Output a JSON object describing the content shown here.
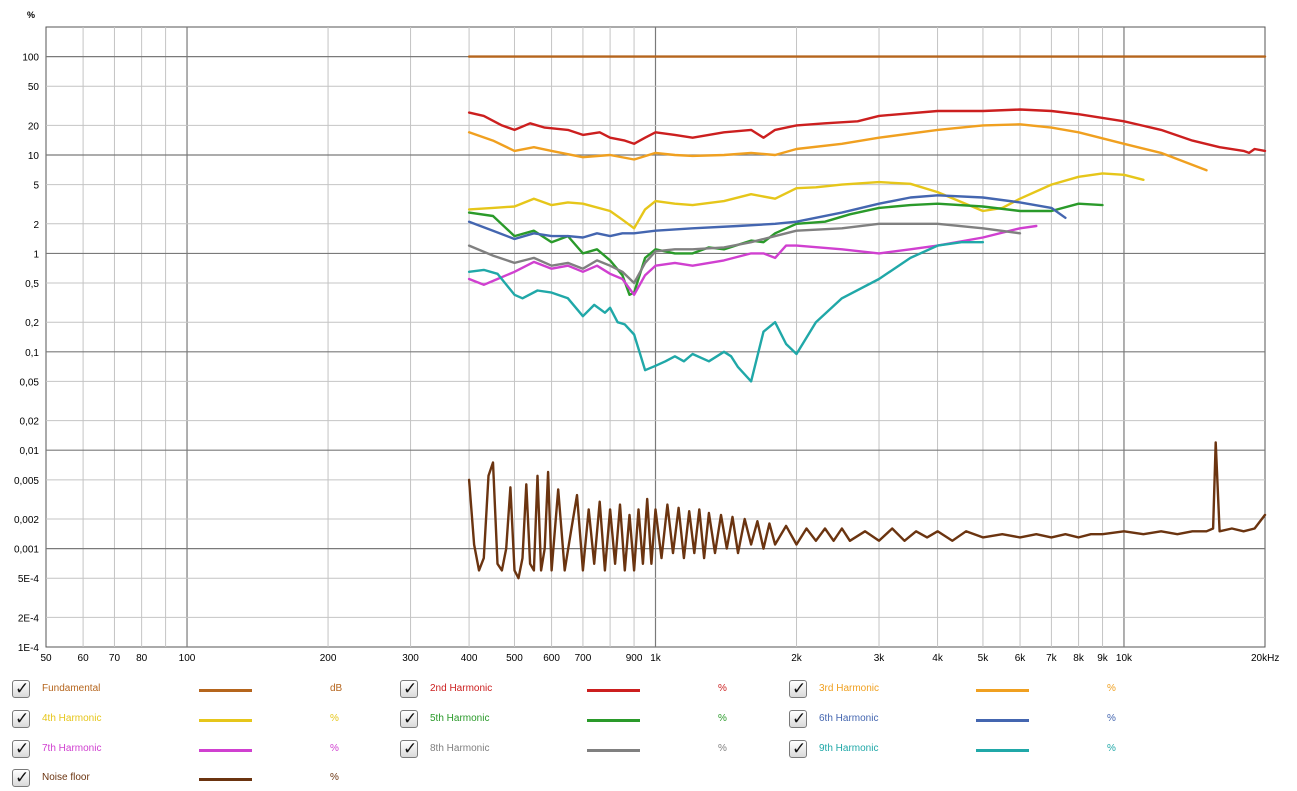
{
  "chart_data": {
    "type": "line",
    "y_unit_label": "%",
    "x_unit_label": "Hz",
    "x_scale": "log",
    "y_scale": "log",
    "xlim": [
      50,
      20000
    ],
    "ylim": [
      0.0001,
      200
    ],
    "grid": true,
    "x_tick_labels": [
      {
        "v": 50,
        "t": "50"
      },
      {
        "v": 60,
        "t": "60"
      },
      {
        "v": 70,
        "t": "70"
      },
      {
        "v": 80,
        "t": "80"
      },
      {
        "v": 100,
        "t": "100"
      },
      {
        "v": 200,
        "t": "200"
      },
      {
        "v": 300,
        "t": "300"
      },
      {
        "v": 400,
        "t": "400"
      },
      {
        "v": 500,
        "t": "500"
      },
      {
        "v": 600,
        "t": "600"
      },
      {
        "v": 700,
        "t": "700"
      },
      {
        "v": 900,
        "t": "900"
      },
      {
        "v": 1000,
        "t": "1k"
      },
      {
        "v": 2000,
        "t": "2k"
      },
      {
        "v": 3000,
        "t": "3k"
      },
      {
        "v": 4000,
        "t": "4k"
      },
      {
        "v": 5000,
        "t": "5k"
      },
      {
        "v": 6000,
        "t": "6k"
      },
      {
        "v": 7000,
        "t": "7k"
      },
      {
        "v": 8000,
        "t": "8k"
      },
      {
        "v": 9000,
        "t": "9k"
      },
      {
        "v": 10000,
        "t": "10k"
      },
      {
        "v": 20000,
        "t": "20kHz"
      }
    ],
    "y_tick_labels": [
      {
        "v": 100,
        "t": "100"
      },
      {
        "v": 50,
        "t": "50"
      },
      {
        "v": 20,
        "t": "20"
      },
      {
        "v": 10,
        "t": "10"
      },
      {
        "v": 5,
        "t": "5"
      },
      {
        "v": 2,
        "t": "2"
      },
      {
        "v": 1,
        "t": "1"
      },
      {
        "v": 0.5,
        "t": "0,5"
      },
      {
        "v": 0.2,
        "t": "0,2"
      },
      {
        "v": 0.1,
        "t": "0,1"
      },
      {
        "v": 0.05,
        "t": "0,05"
      },
      {
        "v": 0.02,
        "t": "0,02"
      },
      {
        "v": 0.01,
        "t": "0,01"
      },
      {
        "v": 0.005,
        "t": "0,005"
      },
      {
        "v": 0.002,
        "t": "0,002"
      },
      {
        "v": 0.001,
        "t": "0,001"
      },
      {
        "v": 0.0005,
        "t": "5E-4"
      },
      {
        "v": 0.0002,
        "t": "2E-4"
      },
      {
        "v": 0.0001,
        "t": "1E-4"
      }
    ],
    "series": [
      {
        "name": "Fundamental",
        "unit": "dB",
        "color": "#b5651d",
        "x": [
          400,
          20000
        ],
        "y": [
          100,
          100
        ]
      },
      {
        "name": "2nd Harmonic",
        "unit": "%",
        "color": "#cc1f1f",
        "x": [
          400,
          430,
          470,
          500,
          540,
          580,
          650,
          700,
          760,
          800,
          860,
          900,
          950,
          1000,
          1100,
          1200,
          1400,
          1600,
          1700,
          1800,
          2000,
          2300,
          2700,
          3000,
          4000,
          5000,
          6000,
          7000,
          8000,
          10000,
          12000,
          14000,
          16000,
          18000,
          18500,
          19000,
          20000
        ],
        "y": [
          27,
          25,
          20,
          18,
          21,
          19,
          18,
          16,
          17,
          15,
          14,
          13,
          15,
          17,
          16,
          15,
          17,
          18,
          15,
          18,
          20,
          21,
          22,
          25,
          28,
          28,
          29,
          28,
          26,
          22,
          18,
          14,
          12,
          11,
          10.5,
          11.5,
          11
        ]
      },
      {
        "name": "3rd Harmonic",
        "unit": "%",
        "color": "#f0a020",
        "x": [
          400,
          450,
          500,
          550,
          600,
          700,
          800,
          900,
          1000,
          1100,
          1200,
          1400,
          1600,
          1800,
          2000,
          2500,
          3000,
          4000,
          5000,
          6000,
          7000,
          8000,
          10000,
          12000,
          15000
        ],
        "y": [
          17,
          14,
          11,
          12,
          11,
          9.5,
          10,
          9,
          10.5,
          10,
          9.8,
          10,
          10.5,
          10,
          11.5,
          13,
          15,
          18,
          20,
          20.5,
          19,
          17,
          13,
          10.5,
          7
        ]
      },
      {
        "name": "4th Harmonic",
        "unit": "%",
        "color": "#e6c61a",
        "x": [
          400,
          450,
          500,
          550,
          600,
          650,
          700,
          800,
          850,
          900,
          950,
          1000,
          1100,
          1200,
          1400,
          1600,
          1800,
          2000,
          2200,
          2500,
          3000,
          3500,
          4000,
          5000,
          5500,
          6000,
          7000,
          8000,
          9000,
          10000,
          11000
        ],
        "y": [
          2.8,
          2.9,
          3.0,
          3.6,
          3.1,
          3.3,
          3.2,
          2.7,
          2.2,
          1.8,
          2.8,
          3.4,
          3.2,
          3.1,
          3.4,
          4.0,
          3.6,
          4.6,
          4.7,
          5.0,
          5.3,
          5.1,
          4.2,
          2.7,
          2.9,
          3.6,
          5.0,
          6.0,
          6.5,
          6.3,
          5.6
        ]
      },
      {
        "name": "5th Harmonic",
        "unit": "%",
        "color": "#2a9a2a",
        "x": [
          400,
          450,
          500,
          550,
          600,
          650,
          700,
          750,
          800,
          850,
          880,
          900,
          950,
          1000,
          1100,
          1200,
          1300,
          1400,
          1600,
          1700,
          1800,
          2000,
          2300,
          2600,
          3000,
          3500,
          4000,
          5000,
          6000,
          7000,
          8000,
          9000
        ],
        "y": [
          2.6,
          2.4,
          1.5,
          1.7,
          1.3,
          1.5,
          1.0,
          1.1,
          0.85,
          0.6,
          0.38,
          0.4,
          0.9,
          1.1,
          1.0,
          1.0,
          1.15,
          1.1,
          1.35,
          1.3,
          1.6,
          2.0,
          2.1,
          2.5,
          2.9,
          3.1,
          3.2,
          3.0,
          2.7,
          2.7,
          3.2,
          3.1
        ]
      },
      {
        "name": "6th Harmonic",
        "unit": "%",
        "color": "#4466b0",
        "x": [
          400,
          450,
          500,
          550,
          600,
          650,
          700,
          750,
          800,
          850,
          900,
          1000,
          1200,
          1500,
          1800,
          2000,
          2500,
          3000,
          3500,
          4000,
          5000,
          6000,
          7000,
          7500
        ],
        "y": [
          2.1,
          1.7,
          1.4,
          1.6,
          1.5,
          1.5,
          1.45,
          1.6,
          1.5,
          1.6,
          1.6,
          1.7,
          1.8,
          1.9,
          2.0,
          2.1,
          2.6,
          3.2,
          3.7,
          3.9,
          3.7,
          3.3,
          2.9,
          2.3
        ]
      },
      {
        "name": "7th Harmonic",
        "unit": "%",
        "color": "#d040d0",
        "x": [
          400,
          430,
          460,
          500,
          550,
          600,
          650,
          700,
          750,
          800,
          850,
          900,
          950,
          1000,
          1100,
          1200,
          1400,
          1600,
          1700,
          1800,
          1900,
          2000,
          2500,
          3000,
          3500,
          4000,
          5000,
          6000,
          6500
        ],
        "y": [
          0.55,
          0.48,
          0.55,
          0.65,
          0.82,
          0.7,
          0.75,
          0.65,
          0.75,
          0.62,
          0.55,
          0.38,
          0.6,
          0.75,
          0.8,
          0.75,
          0.85,
          1.0,
          1.0,
          0.9,
          1.2,
          1.2,
          1.1,
          1.0,
          1.1,
          1.2,
          1.45,
          1.8,
          1.9
        ]
      },
      {
        "name": "8th Harmonic",
        "unit": "%",
        "color": "#808080",
        "x": [
          400,
          450,
          500,
          550,
          600,
          650,
          700,
          750,
          800,
          850,
          900,
          950,
          1000,
          1100,
          1200,
          1400,
          1600,
          1800,
          2000,
          2500,
          3000,
          4000,
          5000,
          6000
        ],
        "y": [
          1.2,
          0.95,
          0.8,
          0.9,
          0.75,
          0.8,
          0.7,
          0.85,
          0.75,
          0.65,
          0.5,
          0.8,
          1.05,
          1.1,
          1.1,
          1.15,
          1.3,
          1.5,
          1.7,
          1.8,
          2.0,
          2.0,
          1.8,
          1.6
        ]
      },
      {
        "name": "9th Harmonic",
        "unit": "%",
        "color": "#20a8a8",
        "x": [
          400,
          430,
          460,
          500,
          520,
          560,
          600,
          650,
          700,
          740,
          780,
          800,
          830,
          860,
          900,
          950,
          1000,
          1050,
          1100,
          1150,
          1200,
          1300,
          1400,
          1450,
          1500,
          1600,
          1700,
          1800,
          1900,
          2000,
          2200,
          2500,
          3000,
          3500,
          4000,
          4500,
          5000
        ],
        "y": [
          0.65,
          0.68,
          0.62,
          0.38,
          0.35,
          0.42,
          0.4,
          0.35,
          0.23,
          0.3,
          0.25,
          0.28,
          0.2,
          0.19,
          0.15,
          0.065,
          0.072,
          0.08,
          0.09,
          0.08,
          0.095,
          0.08,
          0.1,
          0.09,
          0.07,
          0.05,
          0.16,
          0.2,
          0.12,
          0.095,
          0.2,
          0.35,
          0.55,
          0.9,
          1.2,
          1.3,
          1.3
        ]
      },
      {
        "name": "Noise floor",
        "unit": "%",
        "color": "#6b3410",
        "x": [
          400,
          410,
          420,
          430,
          440,
          450,
          460,
          470,
          480,
          490,
          500,
          510,
          520,
          530,
          540,
          550,
          560,
          570,
          580,
          590,
          600,
          620,
          640,
          660,
          680,
          700,
          720,
          740,
          760,
          780,
          800,
          820,
          840,
          860,
          880,
          900,
          920,
          940,
          960,
          980,
          1000,
          1030,
          1060,
          1090,
          1120,
          1150,
          1180,
          1210,
          1240,
          1270,
          1300,
          1340,
          1380,
          1420,
          1460,
          1500,
          1550,
          1600,
          1650,
          1700,
          1750,
          1800,
          1900,
          2000,
          2100,
          2200,
          2300,
          2400,
          2500,
          2600,
          2800,
          3000,
          3200,
          3400,
          3600,
          3800,
          4000,
          4300,
          4600,
          5000,
          5500,
          6000,
          6500,
          7000,
          7500,
          8000,
          8500,
          9000,
          10000,
          11000,
          12000,
          13000,
          14000,
          15000,
          15500,
          15700,
          16000,
          17000,
          18000,
          19000,
          20000
        ],
        "y": [
          0.005,
          0.0011,
          0.0006,
          0.0008,
          0.0055,
          0.0075,
          0.0007,
          0.0006,
          0.001,
          0.0042,
          0.0006,
          0.0005,
          0.0008,
          0.0045,
          0.0007,
          0.0006,
          0.0055,
          0.0006,
          0.001,
          0.006,
          0.0006,
          0.004,
          0.0006,
          0.0015,
          0.0035,
          0.0006,
          0.0025,
          0.0007,
          0.003,
          0.0006,
          0.0025,
          0.0007,
          0.0028,
          0.0006,
          0.0022,
          0.0006,
          0.0025,
          0.0007,
          0.0032,
          0.0007,
          0.0025,
          0.0008,
          0.0028,
          0.0009,
          0.0026,
          0.0008,
          0.0024,
          0.0009,
          0.0025,
          0.0008,
          0.0023,
          0.0009,
          0.0022,
          0.001,
          0.0021,
          0.0009,
          0.002,
          0.0011,
          0.0019,
          0.001,
          0.0018,
          0.0011,
          0.0017,
          0.0011,
          0.0016,
          0.0012,
          0.0016,
          0.0012,
          0.0016,
          0.0012,
          0.0015,
          0.0012,
          0.0016,
          0.0012,
          0.0015,
          0.0013,
          0.0015,
          0.0012,
          0.0015,
          0.0013,
          0.0014,
          0.0013,
          0.0014,
          0.0013,
          0.0014,
          0.0013,
          0.0014,
          0.0014,
          0.0015,
          0.0014,
          0.0015,
          0.0014,
          0.0015,
          0.0015,
          0.0016,
          0.012,
          0.0015,
          0.0016,
          0.0015,
          0.0016,
          0.0022
        ]
      }
    ]
  },
  "legend": [
    {
      "label": "Fundamental",
      "unit": "dB",
      "color": "#b5651d",
      "checked": "✓"
    },
    {
      "label": "2nd Harmonic",
      "unit": "%",
      "color": "#cc1f1f",
      "checked": "✓"
    },
    {
      "label": "3rd Harmonic",
      "unit": "%",
      "color": "#f0a020",
      "checked": "✓"
    },
    {
      "label": "4th Harmonic",
      "unit": "%",
      "color": "#e6c61a",
      "checked": "✓"
    },
    {
      "label": "5th Harmonic",
      "unit": "%",
      "color": "#2a9a2a",
      "checked": "✓"
    },
    {
      "label": "6th Harmonic",
      "unit": "%",
      "color": "#4466b0",
      "checked": "✓"
    },
    {
      "label": "7th Harmonic",
      "unit": "%",
      "color": "#d040d0",
      "checked": "✓"
    },
    {
      "label": "8th Harmonic",
      "unit": "%",
      "color": "#808080",
      "checked": "✓"
    },
    {
      "label": "9th Harmonic",
      "unit": "%",
      "color": "#20a8a8",
      "checked": "✓"
    },
    {
      "label": "Noise floor",
      "unit": "%",
      "color": "#6b3410",
      "checked": "✓"
    }
  ]
}
